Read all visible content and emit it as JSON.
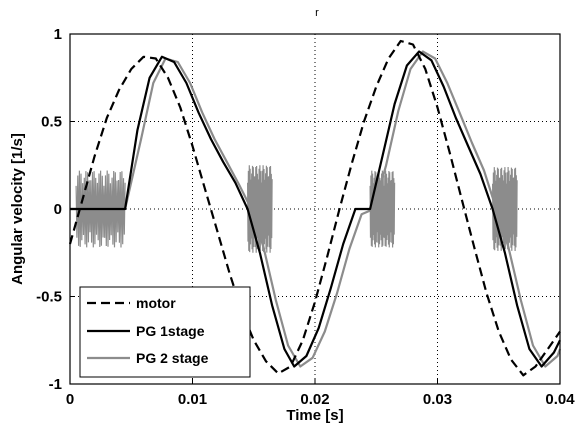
{
  "chart_data": {
    "type": "line",
    "title": "r",
    "xlabel": "Time [s]",
    "ylabel": "Angular velocity  [1/s]",
    "xlim": [
      0,
      0.04
    ],
    "ylim": [
      -1,
      1
    ],
    "xticks": [
      0,
      0.01,
      0.02,
      0.03,
      0.04
    ],
    "xtick_labels": [
      "0",
      "0.01",
      "0.02",
      "0.03",
      "0.04"
    ],
    "yticks": [
      -1,
      -0.5,
      0,
      0.5,
      1
    ],
    "ytick_labels": [
      "-1",
      "-0.5",
      "0",
      "0.5",
      "1"
    ],
    "grid": true,
    "legend_position": "bottom-left",
    "series": [
      {
        "name": "motor",
        "color": "#000000",
        "style": "dashed",
        "x": [
          0,
          0.001,
          0.002,
          0.003,
          0.004,
          0.005,
          0.006,
          0.007,
          0.008,
          0.009,
          0.01,
          0.011,
          0.012,
          0.013,
          0.014,
          0.015,
          0.016,
          0.017,
          0.018,
          0.019,
          0.02,
          0.021,
          0.022,
          0.023,
          0.024,
          0.025,
          0.026,
          0.027,
          0.028,
          0.029,
          0.03,
          0.031,
          0.032,
          0.033,
          0.034,
          0.035,
          0.036,
          0.037,
          0.038,
          0.039,
          0.04
        ],
        "y": [
          -0.2,
          0.05,
          0.3,
          0.52,
          0.68,
          0.8,
          0.87,
          0.86,
          0.75,
          0.58,
          0.36,
          0.12,
          -0.12,
          -0.36,
          -0.58,
          -0.75,
          -0.87,
          -0.94,
          -0.9,
          -0.75,
          -0.53,
          -0.27,
          0.0,
          0.26,
          0.5,
          0.7,
          0.86,
          0.96,
          0.94,
          0.8,
          0.58,
          0.32,
          0.05,
          -0.22,
          -0.48,
          -0.7,
          -0.86,
          -0.95,
          -0.9,
          -0.8,
          -0.7
        ]
      },
      {
        "name": "PG 1stage",
        "color": "#000000",
        "style": "solid",
        "x": [
          0.0,
          0.0045,
          0.0055,
          0.0065,
          0.0075,
          0.0085,
          0.0095,
          0.0105,
          0.0115,
          0.0125,
          0.0135,
          0.0145,
          0.0155,
          0.0165,
          0.0175,
          0.0183,
          0.0193,
          0.0203,
          0.0213,
          0.0223,
          0.0233,
          0.0245,
          0.0255,
          0.0265,
          0.0275,
          0.0285,
          0.0295,
          0.0305,
          0.0315,
          0.0325,
          0.0335,
          0.0345,
          0.0355,
          0.0365,
          0.0375,
          0.0385,
          0.0395,
          0.04
        ],
        "y": [
          0.0,
          0.0,
          0.45,
          0.75,
          0.87,
          0.84,
          0.72,
          0.55,
          0.4,
          0.27,
          0.15,
          0.0,
          -0.25,
          -0.55,
          -0.8,
          -0.9,
          -0.84,
          -0.68,
          -0.45,
          -0.2,
          0.0,
          0.0,
          0.3,
          0.6,
          0.82,
          0.9,
          0.85,
          0.7,
          0.52,
          0.36,
          0.2,
          0.0,
          -0.25,
          -0.55,
          -0.8,
          -0.9,
          -0.82,
          -0.75
        ]
      },
      {
        "name": "PG 2 stage",
        "color": "#8c8c8c",
        "style": "solid",
        "x": [
          0.0,
          0.0045,
          0.0058,
          0.0068,
          0.0078,
          0.0088,
          0.0098,
          0.0108,
          0.0118,
          0.0128,
          0.0138,
          0.0148,
          0.0158,
          0.0168,
          0.0178,
          0.0188,
          0.0198,
          0.0208,
          0.0218,
          0.0228,
          0.0238,
          0.0248,
          0.0258,
          0.0268,
          0.0278,
          0.0288,
          0.0298,
          0.0308,
          0.0318,
          0.0328,
          0.0338,
          0.0348,
          0.0358,
          0.0368,
          0.0378,
          0.0388,
          0.0398,
          0.04
        ],
        "y": [
          0.0,
          0.0,
          0.4,
          0.72,
          0.86,
          0.84,
          0.72,
          0.55,
          0.4,
          0.27,
          0.14,
          0.0,
          -0.22,
          -0.52,
          -0.78,
          -0.9,
          -0.85,
          -0.7,
          -0.48,
          -0.23,
          -0.03,
          0.0,
          0.25,
          0.56,
          0.8,
          0.9,
          0.86,
          0.72,
          0.55,
          0.38,
          0.22,
          0.0,
          -0.22,
          -0.52,
          -0.78,
          -0.9,
          -0.84,
          -0.8
        ]
      }
    ],
    "oscillation_bursts": [
      {
        "x_start": 0.0005,
        "x_end": 0.0045,
        "amplitude": 0.22
      },
      {
        "x_start": 0.0145,
        "x_end": 0.0165,
        "amplitude": 0.25
      },
      {
        "x_start": 0.0245,
        "x_end": 0.0265,
        "amplitude": 0.22
      },
      {
        "x_start": 0.0345,
        "x_end": 0.0365,
        "amplitude": 0.24
      }
    ]
  }
}
